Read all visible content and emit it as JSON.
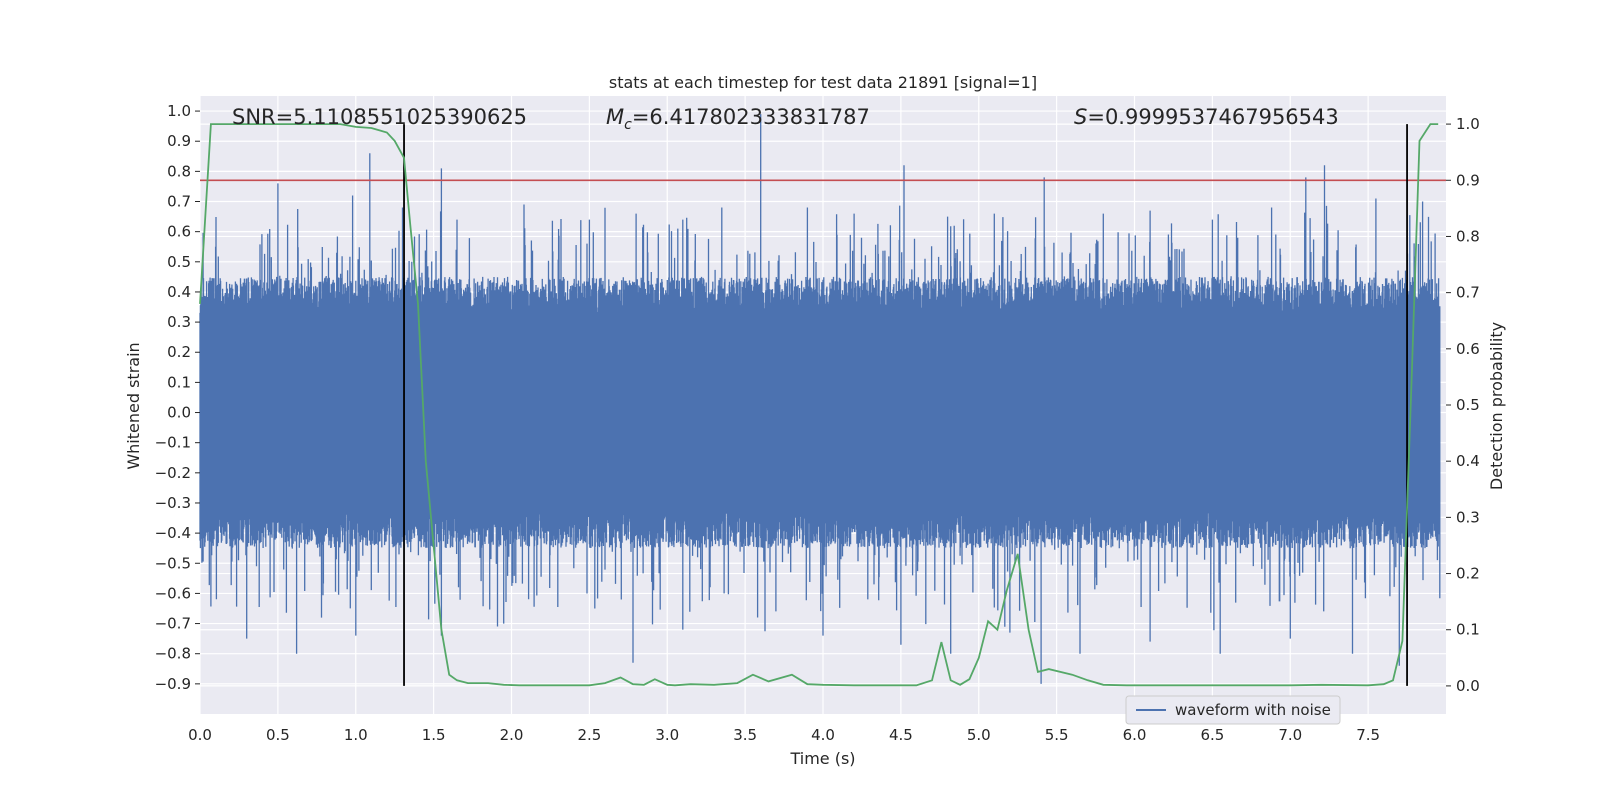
{
  "chart_data": {
    "type": "line",
    "title": "stats at each timestep for test data 21891 [signal=1]",
    "xlabel": "Time (s)",
    "ylabel": "Whitened strain",
    "y2label": "Detection probability",
    "xlim": [
      0.0,
      8.0
    ],
    "ylim": [
      -1.0,
      1.05
    ],
    "y2lim": [
      -0.05,
      1.05
    ],
    "xticks": [
      "0.0",
      "0.5",
      "1.0",
      "1.5",
      "2.0",
      "2.5",
      "3.0",
      "3.5",
      "4.0",
      "4.5",
      "5.0",
      "5.5",
      "6.0",
      "6.5",
      "7.0",
      "7.5"
    ],
    "yticks": [
      "1.0",
      "0.9",
      "0.8",
      "0.7",
      "0.6",
      "0.5",
      "0.4",
      "0.3",
      "0.2",
      "0.1",
      "0.0",
      "−0.1",
      "−0.2",
      "−0.3",
      "−0.4",
      "−0.5",
      "−0.6",
      "−0.7",
      "−0.8",
      "−0.9"
    ],
    "y2ticks": [
      "1.0",
      "0.9",
      "0.8",
      "0.7",
      "0.6",
      "0.5",
      "0.4",
      "0.3",
      "0.2",
      "0.1",
      "0.0"
    ],
    "grid": true,
    "legend_placement": "bottom-right",
    "stats": {
      "snr_label": "SNR=5.1108551025390625",
      "mc_label": "=6.417802333831787",
      "s_label": "=0.9999537467956543"
    },
    "threshold": {
      "value": 0.9,
      "axis": "right",
      "color": "#c44e52"
    },
    "vlines": {
      "x": [
        1.31,
        7.75
      ],
      "color": "#000000"
    },
    "series": [
      {
        "name": "waveform with noise",
        "axis": "left",
        "color": "#4c72b0",
        "style": "dense-noise",
        "envelope_core": 0.33,
        "peaks_up": [
          [
            0.1,
            0.55
          ],
          [
            0.5,
            0.76
          ],
          [
            0.98,
            0.72
          ],
          [
            1.09,
            0.86
          ],
          [
            1.3,
            0.68
          ],
          [
            1.55,
            0.81
          ],
          [
            1.65,
            0.64
          ],
          [
            2.08,
            0.69
          ],
          [
            2.5,
            0.64
          ],
          [
            2.8,
            0.66
          ],
          [
            3.1,
            0.64
          ],
          [
            3.35,
            0.68
          ],
          [
            3.6,
            0.99
          ],
          [
            3.9,
            0.68
          ],
          [
            4.2,
            0.66
          ],
          [
            4.52,
            0.82
          ],
          [
            4.8,
            0.65
          ],
          [
            5.1,
            0.66
          ],
          [
            5.42,
            0.78
          ],
          [
            5.8,
            0.66
          ],
          [
            6.1,
            0.67
          ],
          [
            6.5,
            0.64
          ],
          [
            6.88,
            0.68
          ],
          [
            7.1,
            0.78
          ],
          [
            7.22,
            0.82
          ],
          [
            7.55,
            0.71
          ],
          [
            7.85,
            0.7
          ]
        ],
        "peaks_down": [
          [
            0.3,
            -0.75
          ],
          [
            0.62,
            -0.8
          ],
          [
            1.0,
            -0.74
          ],
          [
            1.55,
            -0.74
          ],
          [
            1.95,
            -0.7
          ],
          [
            2.78,
            -0.83
          ],
          [
            3.1,
            -0.72
          ],
          [
            3.58,
            -0.68
          ],
          [
            4.0,
            -0.74
          ],
          [
            4.5,
            -0.77
          ],
          [
            4.82,
            -0.8
          ],
          [
            5.2,
            -0.73
          ],
          [
            5.4,
            -0.9
          ],
          [
            5.65,
            -0.8
          ],
          [
            6.1,
            -0.76
          ],
          [
            6.55,
            -0.8
          ],
          [
            7.0,
            -0.75
          ],
          [
            7.4,
            -0.8
          ],
          [
            7.7,
            -0.84
          ]
        ]
      },
      {
        "name": "detection probability",
        "axis": "right",
        "color": "#55a868",
        "x": [
          0.0,
          0.07,
          0.2,
          0.4,
          0.6,
          0.8,
          0.9,
          1.0,
          1.1,
          1.2,
          1.25,
          1.31,
          1.35,
          1.4,
          1.45,
          1.5,
          1.55,
          1.6,
          1.65,
          1.72,
          1.85,
          1.95,
          2.05,
          2.2,
          2.5,
          2.6,
          2.7,
          2.78,
          2.85,
          2.92,
          3.0,
          3.05,
          3.15,
          3.3,
          3.45,
          3.55,
          3.65,
          3.8,
          3.9,
          4.0,
          4.2,
          4.4,
          4.6,
          4.7,
          4.76,
          4.82,
          4.88,
          4.94,
          5.0,
          5.06,
          5.12,
          5.18,
          5.25,
          5.32,
          5.38,
          5.45,
          5.6,
          5.7,
          5.8,
          5.95,
          6.2,
          6.6,
          7.0,
          7.2,
          7.5,
          7.6,
          7.66,
          7.72,
          7.78,
          7.83,
          7.9,
          7.95
        ],
        "values": [
          0.68,
          1.0,
          1.0,
          1.0,
          1.0,
          1.0,
          1.0,
          0.995,
          0.993,
          0.985,
          0.97,
          0.94,
          0.82,
          0.68,
          0.4,
          0.25,
          0.1,
          0.02,
          0.01,
          0.005,
          0.005,
          0.002,
          0.001,
          0.001,
          0.001,
          0.005,
          0.015,
          0.003,
          0.002,
          0.012,
          0.002,
          0.001,
          0.003,
          0.002,
          0.005,
          0.02,
          0.008,
          0.02,
          0.003,
          0.002,
          0.001,
          0.001,
          0.001,
          0.01,
          0.078,
          0.01,
          0.002,
          0.012,
          0.05,
          0.115,
          0.1,
          0.17,
          0.235,
          0.1,
          0.025,
          0.03,
          0.02,
          0.01,
          0.002,
          0.001,
          0.001,
          0.001,
          0.001,
          0.002,
          0.001,
          0.003,
          0.01,
          0.08,
          0.55,
          0.97,
          1.0,
          1.0
        ]
      }
    ]
  }
}
